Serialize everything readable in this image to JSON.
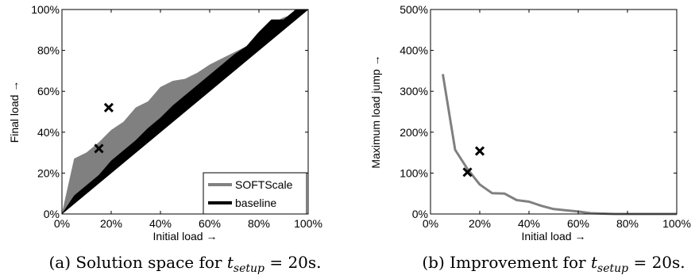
{
  "chart_data": [
    {
      "type": "area",
      "caption_prefix": "(a) Solution space for ",
      "caption_var": "t",
      "caption_sub": "setup",
      "caption_suffix": " = 20s.",
      "xlabel": "Initial load →",
      "ylabel": "Final load →",
      "xlim": [
        0,
        100
      ],
      "ylim": [
        0,
        100
      ],
      "xticks": [
        "0%",
        "20%",
        "40%",
        "60%",
        "80%",
        "100%"
      ],
      "yticks": [
        "0%",
        "20%",
        "40%",
        "60%",
        "80%",
        "100%"
      ],
      "grid": false,
      "legend_position": "bottom-right",
      "series": [
        {
          "name": "SOFTScale",
          "color": "#808080",
          "x": [
            0,
            5,
            10,
            15,
            20,
            25,
            30,
            35,
            40,
            45,
            50,
            55,
            60,
            65,
            70,
            75,
            80,
            85,
            90,
            95,
            100
          ],
          "upper": [
            0,
            27,
            30,
            35,
            41,
            45,
            52,
            55,
            62,
            65,
            66,
            69,
            73,
            76,
            79,
            82,
            89,
            93,
            96,
            98,
            100
          ],
          "lower": [
            0,
            5,
            10,
            15,
            20,
            25,
            30,
            35,
            40,
            45,
            50,
            55,
            60,
            65,
            70,
            75,
            80,
            85,
            90,
            95,
            100
          ]
        },
        {
          "name": "baseline",
          "color": "#000000",
          "x": [
            0,
            5,
            10,
            15,
            20,
            25,
            30,
            35,
            40,
            45,
            50,
            55,
            60,
            65,
            70,
            75,
            80,
            85,
            90,
            95,
            100
          ],
          "upper": [
            0,
            9,
            14,
            19,
            26,
            31,
            36,
            42,
            47,
            53,
            58,
            63,
            68,
            73,
            78,
            82,
            89,
            95,
            95,
            100,
            100
          ],
          "lower": [
            0,
            5,
            10,
            15,
            20,
            25,
            30,
            35,
            40,
            45,
            50,
            55,
            60,
            65,
            70,
            75,
            80,
            85,
            90,
            95,
            100
          ]
        }
      ],
      "markers": [
        {
          "x": 15,
          "y": 32
        },
        {
          "x": 19,
          "y": 52
        }
      ]
    },
    {
      "type": "line",
      "caption_prefix": "(b) Improvement for ",
      "caption_var": "t",
      "caption_sub": "setup",
      "caption_suffix": " = 20s.",
      "xlabel": "Initial load →",
      "ylabel": "Maximum load jump →",
      "xlim": [
        0,
        100
      ],
      "ylim": [
        0,
        500
      ],
      "xticks": [
        "0%",
        "20%",
        "40%",
        "60%",
        "80%",
        "100%"
      ],
      "yticks": [
        "0%",
        "100%",
        "200%",
        "300%",
        "400%",
        "500%"
      ],
      "grid": false,
      "series": [
        {
          "color": "#808080",
          "x": [
            5,
            10,
            15,
            20,
            25,
            30,
            35,
            40,
            45,
            50,
            55,
            60,
            65,
            70,
            75,
            80,
            85,
            90,
            95,
            100
          ],
          "values": [
            342,
            157,
            110,
            72,
            51,
            50,
            34,
            30,
            20,
            12,
            9,
            6,
            2,
            1,
            0,
            0,
            0,
            0,
            0,
            0
          ]
        }
      ],
      "markers": [
        {
          "x": 15,
          "y": 102
        },
        {
          "x": 20,
          "y": 154
        }
      ]
    }
  ]
}
